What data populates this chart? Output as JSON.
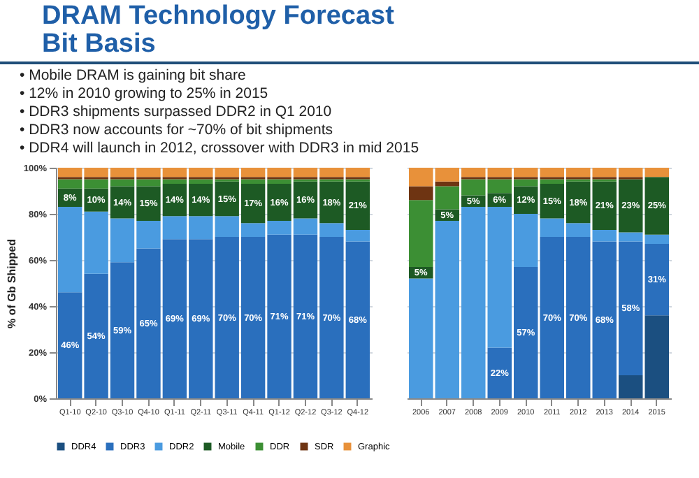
{
  "chart_data": [
    {
      "type": "bar",
      "stacked": true,
      "title": "DRAM Technology Forecast",
      "subtitle": "Bit Basis",
      "annotations": [
        "• Mobile DRAM is gaining bit share",
        "• 12% in 2010 growing to 25% in 2015",
        "• DDR3 shipments surpassed DDR2 in Q1 2010",
        "• DDR3 now accounts for ~70% of bit shipments",
        "• DDR4 will launch in 2012, crossover with DDR3 in mid 2015"
      ],
      "ylabel": "% of Gb Shipped",
      "ylim": [
        0,
        100
      ],
      "yticks": [
        {
          "value": 0,
          "label": "0%"
        },
        {
          "value": 20,
          "label": "20%"
        },
        {
          "value": 40,
          "label": "40%"
        },
        {
          "value": 60,
          "label": "60%"
        },
        {
          "value": 80,
          "label": "80%"
        },
        {
          "value": 100,
          "label": "100%"
        }
      ],
      "grid": "y",
      "legend": "bottom",
      "categories": [
        "Q1-10",
        "Q2-10",
        "Q3-10",
        "Q4-10",
        "Q1-11",
        "Q2-11",
        "Q3-11",
        "Q4-11",
        "Q1-12",
        "Q2-12",
        "Q3-12",
        "Q4-12"
      ],
      "series": [
        {
          "name": "DDR4",
          "color": "#1b4f80",
          "values": [
            0,
            0,
            0,
            0,
            0,
            0,
            0,
            0,
            0,
            0,
            0,
            0
          ]
        },
        {
          "name": "DDR3",
          "color": "#2a6fbd",
          "values": [
            46,
            54,
            59,
            65,
            69,
            69,
            70,
            70,
            71,
            71,
            70,
            68
          ],
          "value_labels": [
            "46%",
            "54%",
            "59%",
            "65%",
            "69%",
            "69%",
            "70%",
            "70%",
            "71%",
            "71%",
            "70%",
            "68%"
          ]
        },
        {
          "name": "DDR2",
          "color": "#4a9be0",
          "values": [
            37,
            27,
            19,
            12,
            10,
            10,
            9,
            6,
            6,
            7,
            6,
            5
          ]
        },
        {
          "name": "Mobile",
          "color": "#1d5a24",
          "values": [
            8,
            10,
            14,
            15,
            14,
            14,
            15,
            17,
            16,
            16,
            18,
            21
          ],
          "value_labels": [
            "8%",
            "10%",
            "14%",
            "15%",
            "14%",
            "14%",
            "15%",
            "17%",
            "16%",
            "16%",
            "18%",
            "21%"
          ]
        },
        {
          "name": "DDR",
          "color": "#3c8f34",
          "values": [
            4,
            4,
            3,
            3,
            2,
            2,
            1,
            2,
            2,
            1,
            1,
            1
          ]
        },
        {
          "name": "SDR",
          "color": "#6e3412",
          "values": [
            1,
            1,
            1,
            1,
            1,
            1,
            1,
            1,
            1,
            1,
            1,
            1
          ]
        },
        {
          "name": "Graphic",
          "color": "#e8913a",
          "values": [
            4,
            4,
            4,
            4,
            4,
            4,
            4,
            4,
            4,
            4,
            4,
            4
          ]
        }
      ]
    },
    {
      "type": "bar",
      "stacked": true,
      "tick_labels": "x",
      "ylim": [
        0,
        100
      ],
      "grid": "y",
      "categories": [
        "2006",
        "2007",
        "2008",
        "2009",
        "2010",
        "2011",
        "2012",
        "2013",
        "2014",
        "2015"
      ],
      "series": [
        {
          "color": "#1b4f80",
          "values": [
            0,
            0,
            0,
            0,
            0,
            0,
            0,
            0,
            10,
            36
          ]
        },
        {
          "color": "#2a6fbd",
          "values": [
            0,
            0,
            0,
            22,
            57,
            70,
            70,
            68,
            58,
            31
          ],
          "value_labels": [
            null,
            null,
            null,
            "22%",
            "57%",
            "70%",
            "70%",
            "68%",
            "58%",
            "31%"
          ]
        },
        {
          "color": "#4a9be0",
          "values": [
            52,
            77,
            83,
            61,
            23,
            8,
            6,
            5,
            4,
            4
          ]
        },
        {
          "color": "#1d5a24",
          "values": [
            5,
            5,
            5,
            6,
            12,
            15,
            18,
            21,
            23,
            25
          ],
          "value_labels": [
            "5%",
            "5%",
            "5%",
            "6%",
            "12%",
            "15%",
            "18%",
            "21%",
            "23%",
            "25%"
          ]
        },
        {
          "color": "#3c8f34",
          "values": [
            29,
            10,
            7,
            6,
            3,
            2,
            1,
            1,
            0,
            0
          ]
        },
        {
          "color": "#6e3412",
          "values": [
            6,
            2,
            1,
            1,
            1,
            1,
            1,
            1,
            1,
            0
          ]
        },
        {
          "color": "#e8913a",
          "values": [
            8,
            6,
            4,
            4,
            4,
            4,
            4,
            4,
            4,
            4
          ]
        }
      ]
    }
  ]
}
